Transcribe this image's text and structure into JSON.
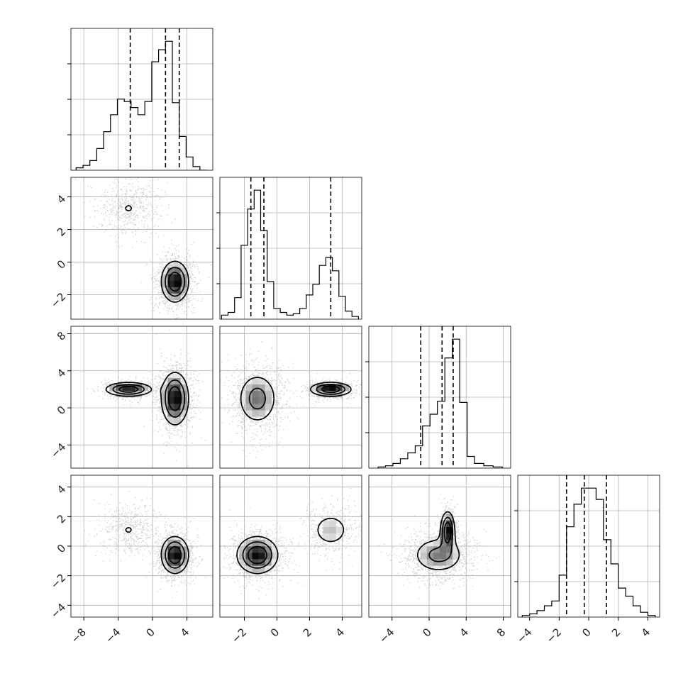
{
  "chart_data": {
    "type": "corner",
    "grid": true,
    "parameters": [
      {
        "range": [
          -9.5,
          7.0
        ],
        "ticks": [
          -8,
          -4,
          0,
          4
        ],
        "tick_labels": [
          "−8",
          "−4",
          "0",
          "4"
        ],
        "quantiles": [
          -2.6,
          1.5,
          3.1
        ],
        "histogram": {
          "bin_edges": [
            -8.9,
            -8.1,
            -7.3,
            -6.5,
            -5.7,
            -4.9,
            -4.1,
            -3.3,
            -2.5,
            -1.7,
            -0.9,
            -0.1,
            0.7,
            1.5,
            2.3,
            3.1,
            3.9,
            4.7,
            5.5,
            6.3
          ],
          "counts": [
            2,
            4,
            8,
            18,
            32,
            46,
            59,
            57,
            52,
            46,
            57,
            90,
            100,
            107,
            56,
            28,
            11,
            3,
            0
          ]
        }
      },
      {
        "range": [
          -3.5,
          5.2
        ],
        "ticks": [
          -2,
          0,
          2,
          4
        ],
        "tick_labels": [
          "−2",
          "0",
          "2",
          "4"
        ],
        "quantiles": [
          -1.6,
          -0.8,
          3.3
        ],
        "histogram": {
          "bin_edges": [
            -3.4,
            -3.0,
            -2.6,
            -2.2,
            -1.8,
            -1.4,
            -1.0,
            -0.6,
            -0.2,
            0.2,
            0.6,
            1.0,
            1.4,
            1.8,
            2.2,
            2.6,
            3.0,
            3.4,
            3.8,
            4.2,
            4.6,
            5.0
          ],
          "counts": [
            3,
            5,
            16,
            55,
            82,
            96,
            66,
            28,
            8,
            5,
            3,
            4,
            8,
            18,
            26,
            40,
            46,
            36,
            17,
            6,
            2
          ]
        }
      },
      {
        "range": [
          -6.5,
          8.8
        ],
        "ticks": [
          -4,
          0,
          4,
          8
        ],
        "tick_labels": [
          "−4",
          "0",
          "4",
          "8"
        ],
        "quantiles": [
          -0.9,
          1.4,
          2.6
        ],
        "histogram": {
          "bin_edges": [
            -5.5,
            -4.7,
            -3.9,
            -3.1,
            -2.3,
            -1.5,
            -0.7,
            0.1,
            0.9,
            1.7,
            2.5,
            3.3,
            4.1,
            4.9,
            5.9,
            6.9,
            7.9
          ],
          "counts": [
            1,
            2,
            4,
            8,
            13,
            19,
            36,
            46,
            57,
            94,
            110,
            56,
            10,
            4,
            2,
            1
          ]
        }
      },
      {
        "range": [
          -4.8,
          4.8
        ],
        "ticks": [
          -4,
          -2,
          0,
          2,
          4
        ],
        "tick_labels": [
          "−4",
          "−2",
          "0",
          "2",
          "4"
        ],
        "quantiles": [
          -1.5,
          -0.3,
          1.2
        ],
        "histogram": {
          "bin_edges": [
            -4.5,
            -4.0,
            -3.5,
            -3.0,
            -2.5,
            -2.0,
            -1.5,
            -1.0,
            -0.5,
            0.0,
            0.5,
            1.0,
            1.5,
            2.0,
            2.5,
            3.0,
            3.5,
            4.0,
            4.5
          ],
          "counts": [
            1,
            2,
            4,
            7,
            10,
            26,
            56,
            70,
            80,
            80,
            73,
            48,
            33,
            18,
            13,
            7,
            3,
            1
          ]
        }
      }
    ],
    "components": [
      {
        "weight": 0.3,
        "mean": [
          -2.8,
          3.3,
          2.0,
          1.1
        ],
        "std": [
          1.6,
          0.75,
          0.45,
          0.75
        ]
      },
      {
        "weight": 0.7,
        "mean": [
          2.6,
          -1.2,
          1.0,
          -0.6
        ],
        "std": [
          0.95,
          0.75,
          1.7,
          0.75
        ]
      }
    ],
    "contour_levels": [
      0.25,
      0.5,
      0.75
    ]
  }
}
